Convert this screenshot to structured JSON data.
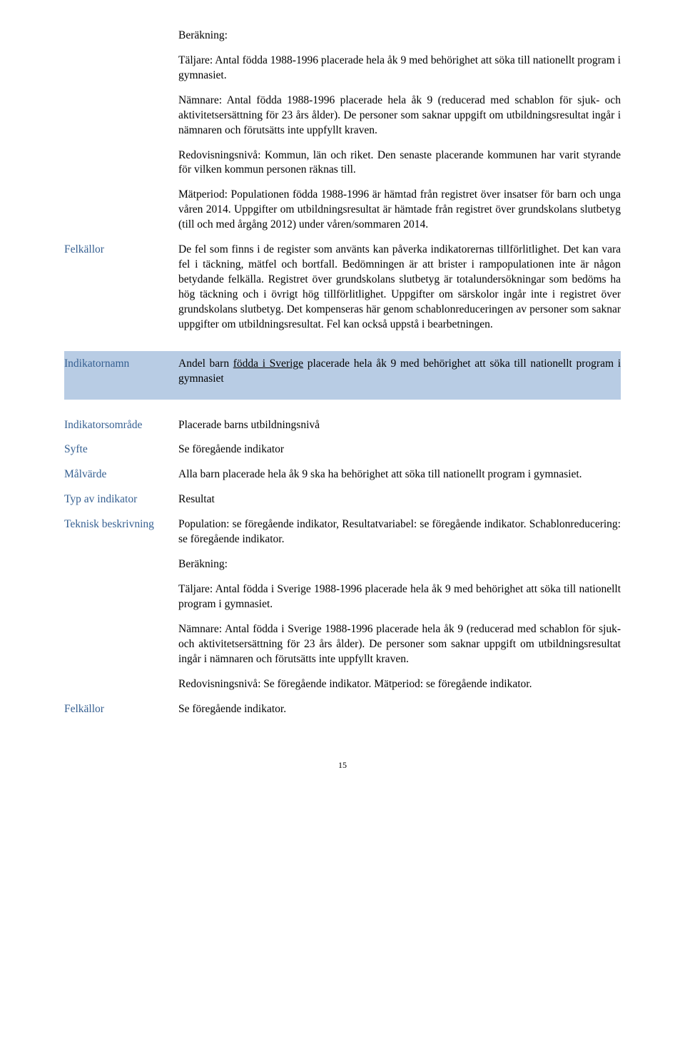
{
  "s1": {
    "beräkning_label": "Beräkning:",
    "taljare": "Täljare: Antal födda 1988-1996 placerade hela åk 9 med behörighet att söka till nationellt program i gymnasiet.",
    "namnare": "Nämnare: Antal födda 1988-1996 placerade hela åk 9 (reducerad med schablon för sjuk- och aktivitetsersättning för 23 års ålder). De personer som saknar uppgift om utbildningsresultat ingår i nämnaren och förutsätts inte uppfyllt kraven.",
    "redovisning": "Redovisningsnivå: Kommun, län och riket. Den senaste placerande kommunen har varit styrande för vilken kommun personen räknas till.",
    "matperiod": "Mätperiod: Populationen födda 1988-1996 är hämtad från registret över insatser för barn och unga våren 2014. Uppgifter om utbildningsresultat är hämtade från registret över grundskolans slutbetyg (till och med årgång 2012) under våren/sommaren 2014.",
    "felkallor_label": "Felkällor",
    "felkallor_text": "De fel som finns i de register som använts kan påverka indikatorernas tillförlitlighet. Det kan vara fel i täckning, mätfel och bortfall. Bedömningen är att brister i rampopulationen inte är någon betydande felkälla. Registret över grundskolans slutbetyg är totalundersökningar som bedöms ha hög täckning och i övrigt hög tillförlitlighet. Uppgifter om särskolor ingår inte i registret över grundskolans slutbetyg. Det kompenseras här genom schablonreduceringen av personer som saknar uppgifter om utbildningsresultat. Fel kan också uppstå i bearbetningen."
  },
  "s2": {
    "indikatornamn_label": "Indikatornamn",
    "indikatornamn_pre": "Andel barn ",
    "indikatornamn_underline": "födda i Sverige",
    "indikatornamn_post": " placerade hela åk 9 med behörighet att söka till nationellt program i gymnasiet",
    "indikatorsomrade_label": "Indikatorsområde",
    "indikatorsomrade_text": "Placerade barns utbildningsnivå",
    "syfte_label": "Syfte",
    "syfte_text": "Se föregående indikator",
    "malvarde_label": "Målvärde",
    "malvarde_text": "Alla barn placerade hela åk 9 ska ha behörighet att söka till nationellt program i gymnasiet.",
    "typ_label": "Typ av indikator",
    "typ_text": "Resultat",
    "teknisk_label": "Teknisk beskrivning",
    "teknisk_p1": "Population: se föregående indikator, Resultatvariabel: se föregående indikator. Schablonreducering: se föregående indikator.",
    "teknisk_p2": "Beräkning:",
    "teknisk_p3": "Täljare: Antal födda i Sverige 1988-1996 placerade hela åk 9 med behörighet att söka till nationellt program i gymnasiet.",
    "teknisk_p4": "Nämnare: Antal födda i Sverige 1988-1996 placerade hela åk 9 (reducerad med schablon för sjuk- och aktivitetsersättning för 23 års ålder). De personer som saknar uppgift om utbildningsresultat ingår i nämnaren och förutsätts inte uppfyllt kraven.",
    "teknisk_p5": "Redovisningsnivå: Se föregående indikator. Mätperiod: se föregående indikator.",
    "felkallor_label": "Felkällor",
    "felkallor_text": "Se föregående indikator."
  },
  "page_number": "15"
}
